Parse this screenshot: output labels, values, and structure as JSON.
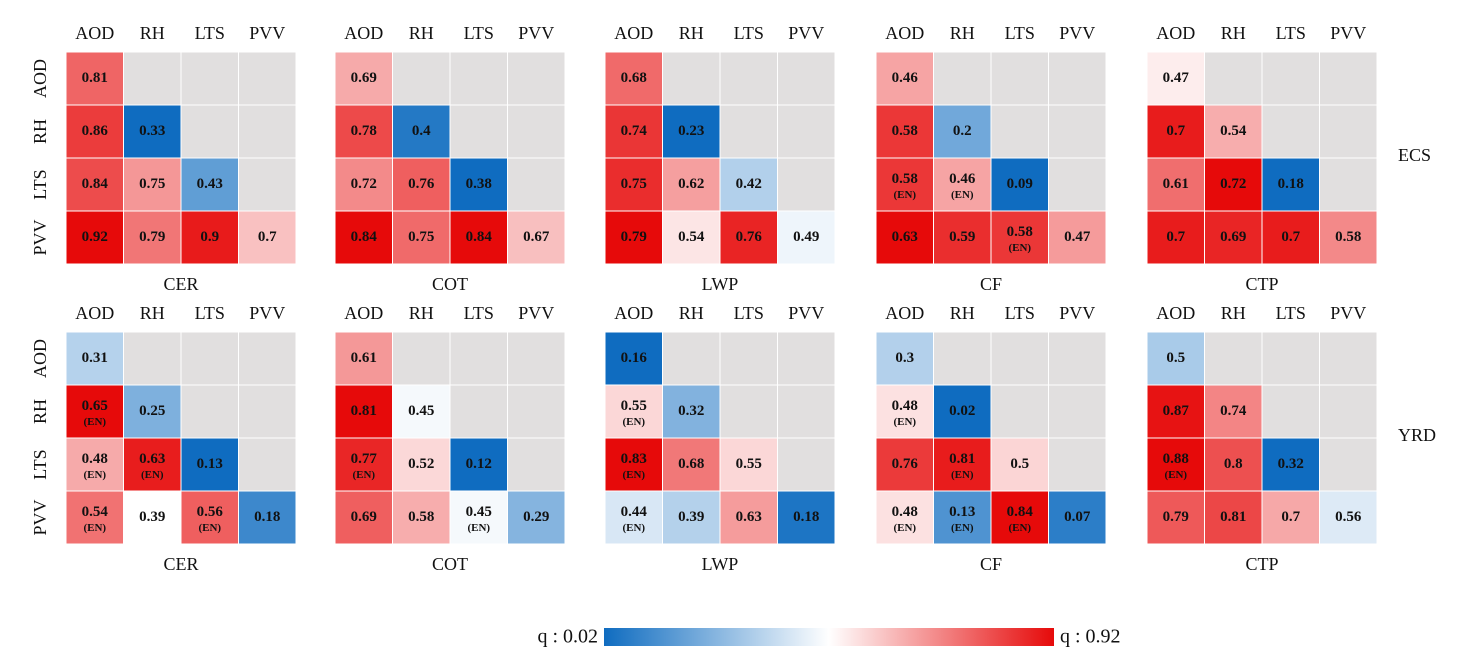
{
  "chart_data": [
    {
      "type": "heatmap",
      "title": "CER",
      "row": 0,
      "categories": [
        "AOD",
        "RH",
        "LTS",
        "PVV"
      ],
      "values": [
        [
          0.81,
          null,
          null,
          null
        ],
        [
          0.86,
          0.33,
          null,
          null
        ],
        [
          0.84,
          0.75,
          0.43,
          null
        ],
        [
          0.92,
          0.79,
          0.9,
          0.7
        ]
      ],
      "en": [
        [
          false,
          false,
          false,
          false
        ],
        [
          false,
          false,
          false,
          false
        ],
        [
          false,
          false,
          false,
          false
        ],
        [
          false,
          false,
          false,
          false
        ]
      ]
    },
    {
      "type": "heatmap",
      "title": "COT",
      "row": 0,
      "categories": [
        "AOD",
        "RH",
        "LTS",
        "PVV"
      ],
      "values": [
        [
          0.69,
          null,
          null,
          null
        ],
        [
          0.78,
          0.4,
          null,
          null
        ],
        [
          0.72,
          0.76,
          0.38,
          null
        ],
        [
          0.84,
          0.75,
          0.84,
          0.67
        ]
      ],
      "en": [
        [
          false,
          false,
          false,
          false
        ],
        [
          false,
          false,
          false,
          false
        ],
        [
          false,
          false,
          false,
          false
        ],
        [
          false,
          false,
          false,
          false
        ]
      ]
    },
    {
      "type": "heatmap",
      "title": "LWP",
      "row": 0,
      "categories": [
        "AOD",
        "RH",
        "LTS",
        "PVV"
      ],
      "values": [
        [
          0.68,
          null,
          null,
          null
        ],
        [
          0.74,
          0.23,
          null,
          null
        ],
        [
          0.75,
          0.62,
          0.42,
          null
        ],
        [
          0.79,
          0.54,
          0.76,
          0.49
        ]
      ],
      "en": [
        [
          false,
          false,
          false,
          false
        ],
        [
          false,
          false,
          false,
          false
        ],
        [
          false,
          false,
          false,
          false
        ],
        [
          false,
          false,
          false,
          false
        ]
      ]
    },
    {
      "type": "heatmap",
      "title": "CF",
      "row": 0,
      "categories": [
        "AOD",
        "RH",
        "LTS",
        "PVV"
      ],
      "values": [
        [
          0.46,
          null,
          null,
          null
        ],
        [
          0.58,
          0.2,
          null,
          null
        ],
        [
          0.58,
          0.46,
          0.09,
          null
        ],
        [
          0.63,
          0.59,
          0.58,
          0.47
        ]
      ],
      "en": [
        [
          false,
          false,
          false,
          false
        ],
        [
          false,
          false,
          false,
          false
        ],
        [
          true,
          true,
          false,
          false
        ],
        [
          false,
          false,
          true,
          false
        ]
      ]
    },
    {
      "type": "heatmap",
      "title": "CTP",
      "row": 0,
      "categories": [
        "AOD",
        "RH",
        "LTS",
        "PVV"
      ],
      "values": [
        [
          0.47,
          null,
          null,
          null
        ],
        [
          0.7,
          0.54,
          null,
          null
        ],
        [
          0.61,
          0.72,
          0.18,
          null
        ],
        [
          0.7,
          0.69,
          0.7,
          0.58
        ]
      ],
      "en": [
        [
          false,
          false,
          false,
          false
        ],
        [
          false,
          false,
          false,
          false
        ],
        [
          false,
          false,
          false,
          false
        ],
        [
          false,
          false,
          false,
          false
        ]
      ]
    },
    {
      "type": "heatmap",
      "title": "CER",
      "row": 1,
      "categories": [
        "AOD",
        "RH",
        "LTS",
        "PVV"
      ],
      "values": [
        [
          0.31,
          null,
          null,
          null
        ],
        [
          0.65,
          0.25,
          null,
          null
        ],
        [
          0.48,
          0.63,
          0.13,
          null
        ],
        [
          0.54,
          0.39,
          0.56,
          0.18
        ]
      ],
      "en": [
        [
          false,
          false,
          false,
          false
        ],
        [
          true,
          false,
          false,
          false
        ],
        [
          true,
          true,
          false,
          false
        ],
        [
          true,
          false,
          true,
          false
        ]
      ]
    },
    {
      "type": "heatmap",
      "title": "COT",
      "row": 1,
      "categories": [
        "AOD",
        "RH",
        "LTS",
        "PVV"
      ],
      "values": [
        [
          0.61,
          null,
          null,
          null
        ],
        [
          0.81,
          0.45,
          null,
          null
        ],
        [
          0.77,
          0.52,
          0.12,
          null
        ],
        [
          0.69,
          0.58,
          0.45,
          0.29
        ]
      ],
      "en": [
        [
          false,
          false,
          false,
          false
        ],
        [
          false,
          false,
          false,
          false
        ],
        [
          true,
          false,
          false,
          false
        ],
        [
          false,
          false,
          true,
          false
        ]
      ]
    },
    {
      "type": "heatmap",
      "title": "LWP",
      "row": 1,
      "categories": [
        "AOD",
        "RH",
        "LTS",
        "PVV"
      ],
      "values": [
        [
          0.16,
          null,
          null,
          null
        ],
        [
          0.55,
          0.32,
          null,
          null
        ],
        [
          0.83,
          0.68,
          0.55,
          null
        ],
        [
          0.44,
          0.39,
          0.63,
          0.18
        ]
      ],
      "en": [
        [
          false,
          false,
          false,
          false
        ],
        [
          true,
          false,
          false,
          false
        ],
        [
          true,
          false,
          false,
          false
        ],
        [
          true,
          false,
          false,
          false
        ]
      ]
    },
    {
      "type": "heatmap",
      "title": "CF",
      "row": 1,
      "categories": [
        "AOD",
        "RH",
        "LTS",
        "PVV"
      ],
      "values": [
        [
          0.3,
          null,
          null,
          null
        ],
        [
          0.48,
          0.02,
          null,
          null
        ],
        [
          0.76,
          0.81,
          0.5,
          null
        ],
        [
          0.48,
          0.13,
          0.84,
          0.07
        ]
      ],
      "en": [
        [
          false,
          false,
          false,
          false
        ],
        [
          true,
          false,
          false,
          false
        ],
        [
          false,
          true,
          false,
          false
        ],
        [
          true,
          true,
          true,
          false
        ]
      ]
    },
    {
      "type": "heatmap",
      "title": "CTP",
      "row": 1,
      "categories": [
        "AOD",
        "RH",
        "LTS",
        "PVV"
      ],
      "values": [
        [
          0.5,
          null,
          null,
          null
        ],
        [
          0.87,
          0.74,
          null,
          null
        ],
        [
          0.88,
          0.8,
          0.32,
          null
        ],
        [
          0.79,
          0.81,
          0.7,
          0.56
        ]
      ],
      "en": [
        [
          false,
          false,
          false,
          false
        ],
        [
          false,
          false,
          false,
          false
        ],
        [
          true,
          false,
          false,
          false
        ],
        [
          false,
          false,
          false,
          false
        ]
      ]
    }
  ],
  "y_categories": [
    "AOD",
    "RH",
    "LTS",
    "PVV"
  ],
  "row_labels": [
    "ECS",
    "YRD"
  ],
  "en_label": "(EN)",
  "empty_color": "#e1dfdf",
  "colorbar": {
    "zlim": [
      {
        "value": 0.02,
        "label": "q : 0.02"
      },
      {
        "value": 0.92,
        "label": "q : 0.92"
      }
    ],
    "colors": [
      "#0f6cc0",
      "#ffffff",
      "#e60a0a"
    ]
  }
}
